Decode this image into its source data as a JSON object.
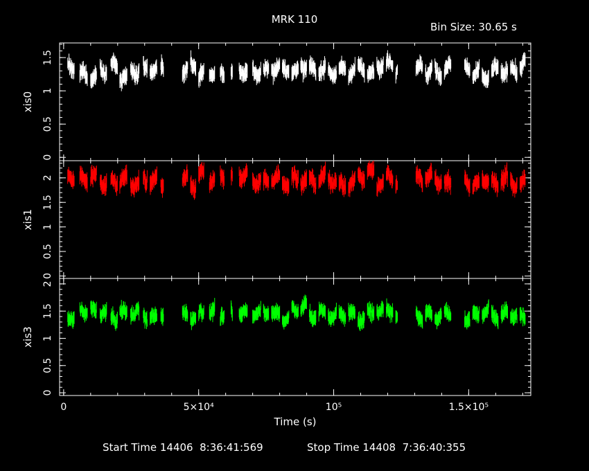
{
  "chart_data": {
    "type": "scatter",
    "title": "MRK 110",
    "subtitle": "Bin Size: 30.65 s",
    "xlabel": "Time (s)",
    "xlim": [
      -1500,
      173000
    ],
    "x_ticks": [
      {
        "value": 0,
        "label": "0"
      },
      {
        "value": 50000,
        "label": "5×10⁴"
      },
      {
        "value": 100000,
        "label": "10⁵"
      },
      {
        "value": 150000,
        "label": "1.5×10⁵"
      }
    ],
    "panels": [
      {
        "name": "xis0",
        "color": "#ffffff",
        "ylim": [
          -0.05,
          1.72
        ],
        "yticks": [
          "0",
          "0.5",
          "1",
          "1.5"
        ],
        "ytick_values": [
          0,
          0.5,
          1,
          1.5
        ],
        "level": 1.3,
        "amp": 0.1,
        "noise": 0.07
      },
      {
        "name": "xis1",
        "color": "#ff0000",
        "ylim": [
          -0.05,
          2.35
        ],
        "yticks": [
          "0",
          "0.5",
          "1",
          "1.5",
          "2"
        ],
        "ytick_values": [
          0,
          0.5,
          1,
          1.5,
          2
        ],
        "level": 1.95,
        "amp": 0.14,
        "noise": 0.1
      },
      {
        "name": "xis3",
        "color": "#00ff00",
        "ylim": [
          -0.05,
          2.1
        ],
        "yticks": [
          "0",
          "0.5",
          "1",
          "1.5",
          "2"
        ],
        "ytick_values": [
          0,
          0.5,
          1,
          1.5,
          2
        ],
        "level": 1.45,
        "amp": 0.1,
        "noise": 0.08
      }
    ],
    "segments": [
      [
        1500,
        4000
      ],
      [
        6000,
        8800
      ],
      [
        10000,
        12200
      ],
      [
        13500,
        16000
      ],
      [
        17500,
        20000
      ],
      [
        20800,
        23500
      ],
      [
        24800,
        28000
      ],
      [
        29500,
        31000
      ],
      [
        32000,
        34600
      ],
      [
        36000,
        37000
      ],
      [
        44000,
        46000
      ],
      [
        47000,
        49000
      ],
      [
        50000,
        52000
      ],
      [
        54000,
        56000
      ],
      [
        58000,
        59500
      ],
      [
        62000,
        62500
      ],
      [
        65000,
        68000
      ],
      [
        70000,
        73000
      ],
      [
        74000,
        76000
      ],
      [
        77000,
        80000
      ],
      [
        81000,
        83500
      ],
      [
        84500,
        87000
      ],
      [
        87800,
        90000
      ],
      [
        91000,
        93500
      ],
      [
        94500,
        97000
      ],
      [
        98000,
        101000
      ],
      [
        102000,
        104500
      ],
      [
        105500,
        108000
      ],
      [
        109000,
        111500
      ],
      [
        112500,
        115000
      ],
      [
        116000,
        118500
      ],
      [
        119500,
        122000
      ],
      [
        123000,
        123600
      ],
      [
        130500,
        133000
      ],
      [
        134000,
        136500
      ],
      [
        137500,
        140000
      ],
      [
        141000,
        143500
      ],
      [
        148500,
        150500
      ],
      [
        151500,
        154000
      ],
      [
        155000,
        157500
      ],
      [
        158500,
        161000
      ],
      [
        162000,
        164500
      ],
      [
        165500,
        168000
      ],
      [
        169000,
        171000
      ]
    ],
    "start_time": "Start Time 14406  8:36:41:569",
    "stop_time": "Stop Time 14408  7:36:40:355"
  }
}
